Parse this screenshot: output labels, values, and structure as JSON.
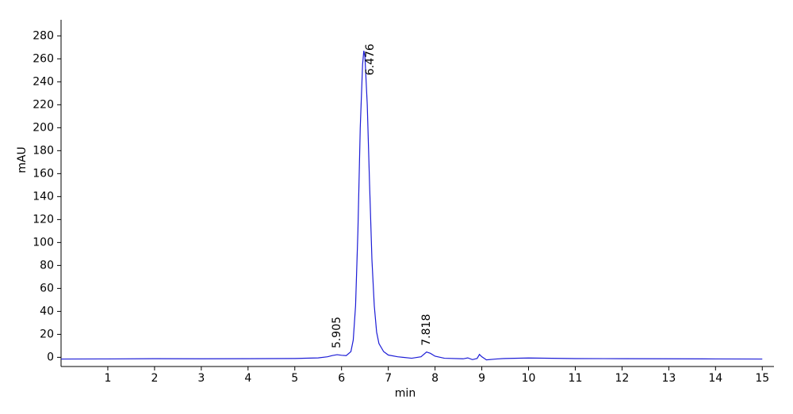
{
  "chart_data": {
    "type": "line",
    "x_label": "min",
    "y_label": "mAU",
    "xlim": [
      0,
      15.25
    ],
    "ylim": [
      -8,
      294
    ],
    "xticks": [
      1,
      2,
      3,
      4,
      5,
      6,
      7,
      8,
      9,
      10,
      11,
      12,
      13,
      14,
      15
    ],
    "yticks": [
      0,
      20,
      40,
      60,
      80,
      100,
      120,
      140,
      160,
      180,
      200,
      220,
      240,
      260,
      280
    ],
    "x": [
      0,
      1,
      2,
      3,
      4,
      5,
      5.5,
      5.7,
      5.8,
      5.905,
      6.0,
      6.1,
      6.2,
      6.25,
      6.3,
      6.35,
      6.4,
      6.45,
      6.476,
      6.5,
      6.55,
      6.6,
      6.65,
      6.7,
      6.75,
      6.8,
      6.9,
      7.0,
      7.2,
      7.5,
      7.7,
      7.818,
      7.9,
      8.0,
      8.2,
      8.6,
      8.7,
      8.8,
      8.9,
      8.95,
      9.0,
      9.1,
      9.3,
      9.5,
      10,
      11,
      12,
      13,
      14,
      15
    ],
    "series": [
      {
        "color": "#1c1cd6",
        "values": [
          -1.5,
          -1.4,
          -1.2,
          -1.3,
          -1.2,
          -1,
          -0.5,
          0.5,
          1.5,
          2.3,
          1.8,
          1.5,
          5,
          15,
          45,
          110,
          200,
          255,
          267,
          262,
          220,
          150,
          85,
          45,
          22,
          12,
          5,
          2,
          0.5,
          -0.8,
          0.5,
          4.6,
          3.5,
          1,
          -0.8,
          -1.3,
          -0.5,
          -2,
          -1,
          2.5,
          0.5,
          -2.2,
          -1.5,
          -1,
          -0.6,
          -1.1,
          -1.2,
          -1.3,
          -1.4,
          -1.5
        ]
      }
    ],
    "annotations": [
      {
        "x": 5.905,
        "y": 2.3,
        "label": "5.905"
      },
      {
        "x": 6.476,
        "y": 267,
        "label": "6.476"
      },
      {
        "x": 7.818,
        "y": 4.6,
        "label": "7.818"
      }
    ]
  }
}
